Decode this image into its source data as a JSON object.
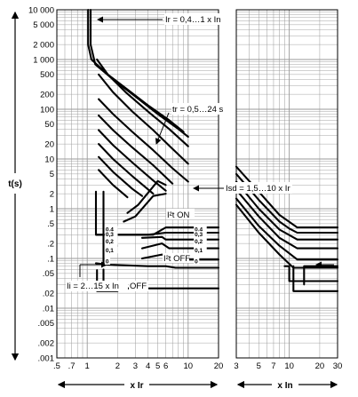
{
  "chart_data": [
    {
      "type": "line",
      "title": "",
      "ylabel": "t(s)",
      "xlabel": "x Ir",
      "xscale": "log",
      "yscale": "log",
      "xlim": [
        0.5,
        20
      ],
      "ylim": [
        0.001,
        10000
      ],
      "x_ticks": [
        0.5,
        0.7,
        1,
        2,
        3,
        4,
        5,
        6,
        10,
        20
      ],
      "x_tick_labels": [
        ".5",
        ".7",
        "1",
        "2",
        "3",
        "4",
        "5",
        "6",
        "10",
        "20"
      ],
      "y_ticks": [
        10000,
        5000,
        2000,
        1000,
        500,
        200,
        100,
        50,
        20,
        10,
        5,
        2,
        1,
        0.5,
        0.2,
        0.1,
        0.05,
        0.02,
        0.01,
        0.005,
        0.002,
        0.001
      ],
      "y_tick_labels": [
        "10 000",
        "5 000",
        "2 000",
        "1 000",
        "500",
        "200",
        "100",
        "50",
        "20",
        "10",
        "5",
        "2",
        "1",
        ".5",
        ".2",
        ".1",
        ".05",
        ".02",
        ".01",
        ".005",
        ".002",
        ".001"
      ],
      "annotations": {
        "ir": "Ir = 0,4…1 x In",
        "tr": "tr = 0,5…24 s",
        "isd": "Isd = 1,5…10 x Ir",
        "i2t_on": "I²t ON",
        "i2t_off": "I²t OFF",
        "ii": "Ii = 2…15 x In",
        "off": "OFF",
        "tsd_labels": [
          "0,4",
          "0,3",
          "0,2",
          "0,1",
          "0"
        ]
      },
      "grid": true,
      "legend": "none",
      "series": [
        {
          "values": [
            [
              1.02,
              10000
            ],
            [
              1.02,
              2000
            ],
            [
              1.1,
              1000
            ],
            [
              1.6,
              500
            ],
            [
              2.5,
              250
            ],
            [
              4,
              120
            ],
            [
              6.5,
              60
            ],
            [
              9,
              35
            ]
          ]
        },
        {
          "values": [
            [
              1.08,
              10000
            ],
            [
              1.08,
              2000
            ],
            [
              1.2,
              800
            ],
            [
              1.8,
              400
            ],
            [
              3,
              180
            ],
            [
              5,
              80
            ],
            [
              8,
              40
            ],
            [
              10,
              28
            ]
          ]
        },
        {
          "values": [
            [
              1.25,
              1000
            ],
            [
              1.6,
              500
            ],
            [
              2.4,
              220
            ],
            [
              4,
              90
            ],
            [
              6.5,
              40
            ],
            [
              10,
              18
            ]
          ]
        },
        {
          "values": [
            [
              1.3,
              500
            ],
            [
              1.8,
              220
            ],
            [
              2.8,
              90
            ],
            [
              4.5,
              38
            ],
            [
              7,
              16
            ],
            [
              10,
              8
            ]
          ]
        },
        {
          "values": [
            [
              1.3,
              160
            ],
            [
              1.8,
              80
            ],
            [
              2.8,
              35
            ],
            [
              4.5,
              15
            ],
            [
              7,
              6.5
            ],
            [
              10,
              3.5
            ]
          ]
        },
        {
          "values": [
            [
              1.3,
              75
            ],
            [
              1.8,
              38
            ],
            [
              2.8,
              17
            ],
            [
              4.5,
              7.5
            ],
            [
              7,
              3.2
            ]
          ]
        },
        {
          "values": [
            [
              1.3,
              38
            ],
            [
              1.8,
              19
            ],
            [
              2.8,
              8.5
            ],
            [
              4.5,
              3.7
            ],
            [
              6,
              2.3
            ]
          ]
        },
        {
          "values": [
            [
              1.3,
              20
            ],
            [
              1.8,
              10
            ],
            [
              2.8,
              4.5
            ],
            [
              4.5,
              2
            ]
          ]
        },
        {
          "values": [
            [
              1.3,
              11
            ],
            [
              1.8,
              5.5
            ],
            [
              2.8,
              2.5
            ],
            [
              3.5,
              1.8
            ]
          ]
        },
        {
          "values": [
            [
              1.3,
              6
            ],
            [
              1.8,
              3
            ],
            [
              2.5,
              1.7
            ]
          ]
        },
        {
          "values": [
            [
              6,
              3
            ],
            [
              5,
              3.6
            ],
            [
              3.2,
              1.2
            ],
            [
              2.5,
              0.82
            ]
          ]
        },
        {
          "values": [
            [
              6,
              2
            ],
            [
              4.5,
              1.8
            ],
            [
              3,
              0.7
            ],
            [
              2.3,
              0.55
            ]
          ]
        },
        {
          "values": [
            [
              1.22,
              2.2
            ],
            [
              1.22,
              0.3
            ],
            [
              2,
              0.3
            ],
            [
              3.5,
              0.3
            ],
            [
              4.5,
              0.3
            ],
            [
              6,
              0.42
            ],
            [
              6,
              0.42
            ],
            [
              20,
              0.42
            ]
          ]
        },
        {
          "values": [
            [
              1.22,
              0.3
            ],
            [
              2,
              0.3
            ],
            [
              4,
              0.3
            ],
            [
              6,
              0.33
            ],
            [
              20,
              0.33
            ]
          ]
        },
        {
          "values": [
            [
              3.5,
              0.26
            ],
            [
              5.5,
              0.27
            ],
            [
              6,
              0.24
            ],
            [
              20,
              0.24
            ]
          ]
        },
        {
          "values": [
            [
              3.5,
              0.16
            ],
            [
              5.5,
              0.2
            ],
            [
              6.5,
              0.16
            ],
            [
              20,
              0.16
            ]
          ]
        },
        {
          "values": [
            [
              3.5,
              0.1
            ],
            [
              5.5,
              0.12
            ],
            [
              7,
              0.095
            ],
            [
              20,
              0.095
            ]
          ]
        },
        {
          "values": [
            [
              1.22,
              0.08
            ],
            [
              1.6,
              0.075
            ],
            [
              4,
              0.07
            ],
            [
              6,
              0.07
            ],
            [
              7.5,
              0.065
            ],
            [
              20,
              0.065
            ]
          ]
        },
        {
          "values": [
            [
              1.45,
              2.2
            ],
            [
              1.45,
              0.08
            ]
          ]
        },
        {
          "values": [
            [
              1.45,
              0.06
            ],
            [
              1.45,
              0.025
            ],
            [
              2,
              0.025
            ],
            [
              6,
              0.025
            ],
            [
              20,
              0.025
            ]
          ]
        },
        {
          "values": [
            [
              1.25,
              0.058
            ],
            [
              1.25,
              0.022
            ],
            [
              2,
              0.022
            ]
          ]
        }
      ]
    },
    {
      "type": "line",
      "xlabel": "x In",
      "xscale": "log",
      "yscale": "log",
      "xlim": [
        3,
        30
      ],
      "ylim": [
        0.001,
        10000
      ],
      "x_ticks": [
        3,
        5,
        7,
        10,
        20,
        30
      ],
      "x_tick_labels": [
        "3",
        "5",
        "7",
        "10",
        "20",
        "30"
      ],
      "grid": true,
      "legend": "none",
      "series": [
        {
          "values": [
            [
              3,
              7
            ],
            [
              5,
              2.2
            ],
            [
              8,
              0.75
            ],
            [
              12,
              0.42
            ],
            [
              30,
              0.42
            ]
          ]
        },
        {
          "values": [
            [
              3,
              5
            ],
            [
              5,
              1.5
            ],
            [
              8,
              0.55
            ],
            [
              10,
              0.4
            ],
            [
              12,
              0.33
            ],
            [
              30,
              0.33
            ]
          ]
        },
        {
          "values": [
            [
              3,
              3.5
            ],
            [
              5,
              1
            ],
            [
              8,
              0.38
            ],
            [
              12,
              0.24
            ],
            [
              30,
              0.24
            ]
          ]
        },
        {
          "values": [
            [
              3,
              2.4
            ],
            [
              5,
              0.7
            ],
            [
              8,
              0.26
            ],
            [
              12,
              0.16
            ],
            [
              30,
              0.16
            ]
          ]
        },
        {
          "values": [
            [
              3,
              1.6
            ],
            [
              5,
              0.45
            ],
            [
              8,
              0.18
            ],
            [
              12,
              0.095
            ],
            [
              30,
              0.095
            ]
          ]
        },
        {
          "values": [
            [
              3,
              1.2
            ],
            [
              5,
              0.33
            ],
            [
              8,
              0.12
            ],
            [
              11,
              0.065
            ],
            [
              30,
              0.065
            ]
          ]
        },
        {
          "values": [
            [
              9,
              0.07
            ],
            [
              10,
              0.07
            ],
            [
              10,
              0.035
            ],
            [
              30,
              0.035
            ]
          ]
        },
        {
          "values": [
            [
              11,
              0.07
            ],
            [
              11,
              0.022
            ],
            [
              30,
              0.022
            ]
          ]
        },
        {
          "values": [
            [
              14,
              0.03
            ],
            [
              14,
              0.07
            ],
            [
              30,
              0.07
            ]
          ]
        }
      ]
    }
  ]
}
